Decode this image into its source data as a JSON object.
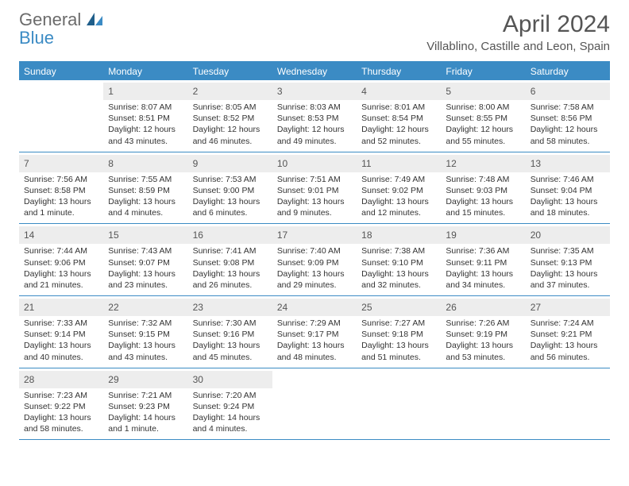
{
  "brand": {
    "part1": "General",
    "part2": "Blue"
  },
  "title": "April 2024",
  "location": "Villablino, Castille and Leon, Spain",
  "accent_color": "#3b8bc4",
  "daynum_bg": "#ededed",
  "text_color": "#555555",
  "body_text_color": "#333333",
  "dayNames": [
    "Sunday",
    "Monday",
    "Tuesday",
    "Wednesday",
    "Thursday",
    "Friday",
    "Saturday"
  ],
  "weeks": [
    [
      null,
      {
        "n": "1",
        "sr": "Sunrise: 8:07 AM",
        "ss": "Sunset: 8:51 PM",
        "dl": "Daylight: 12 hours and 43 minutes."
      },
      {
        "n": "2",
        "sr": "Sunrise: 8:05 AM",
        "ss": "Sunset: 8:52 PM",
        "dl": "Daylight: 12 hours and 46 minutes."
      },
      {
        "n": "3",
        "sr": "Sunrise: 8:03 AM",
        "ss": "Sunset: 8:53 PM",
        "dl": "Daylight: 12 hours and 49 minutes."
      },
      {
        "n": "4",
        "sr": "Sunrise: 8:01 AM",
        "ss": "Sunset: 8:54 PM",
        "dl": "Daylight: 12 hours and 52 minutes."
      },
      {
        "n": "5",
        "sr": "Sunrise: 8:00 AM",
        "ss": "Sunset: 8:55 PM",
        "dl": "Daylight: 12 hours and 55 minutes."
      },
      {
        "n": "6",
        "sr": "Sunrise: 7:58 AM",
        "ss": "Sunset: 8:56 PM",
        "dl": "Daylight: 12 hours and 58 minutes."
      }
    ],
    [
      {
        "n": "7",
        "sr": "Sunrise: 7:56 AM",
        "ss": "Sunset: 8:58 PM",
        "dl": "Daylight: 13 hours and 1 minute."
      },
      {
        "n": "8",
        "sr": "Sunrise: 7:55 AM",
        "ss": "Sunset: 8:59 PM",
        "dl": "Daylight: 13 hours and 4 minutes."
      },
      {
        "n": "9",
        "sr": "Sunrise: 7:53 AM",
        "ss": "Sunset: 9:00 PM",
        "dl": "Daylight: 13 hours and 6 minutes."
      },
      {
        "n": "10",
        "sr": "Sunrise: 7:51 AM",
        "ss": "Sunset: 9:01 PM",
        "dl": "Daylight: 13 hours and 9 minutes."
      },
      {
        "n": "11",
        "sr": "Sunrise: 7:49 AM",
        "ss": "Sunset: 9:02 PM",
        "dl": "Daylight: 13 hours and 12 minutes."
      },
      {
        "n": "12",
        "sr": "Sunrise: 7:48 AM",
        "ss": "Sunset: 9:03 PM",
        "dl": "Daylight: 13 hours and 15 minutes."
      },
      {
        "n": "13",
        "sr": "Sunrise: 7:46 AM",
        "ss": "Sunset: 9:04 PM",
        "dl": "Daylight: 13 hours and 18 minutes."
      }
    ],
    [
      {
        "n": "14",
        "sr": "Sunrise: 7:44 AM",
        "ss": "Sunset: 9:06 PM",
        "dl": "Daylight: 13 hours and 21 minutes."
      },
      {
        "n": "15",
        "sr": "Sunrise: 7:43 AM",
        "ss": "Sunset: 9:07 PM",
        "dl": "Daylight: 13 hours and 23 minutes."
      },
      {
        "n": "16",
        "sr": "Sunrise: 7:41 AM",
        "ss": "Sunset: 9:08 PM",
        "dl": "Daylight: 13 hours and 26 minutes."
      },
      {
        "n": "17",
        "sr": "Sunrise: 7:40 AM",
        "ss": "Sunset: 9:09 PM",
        "dl": "Daylight: 13 hours and 29 minutes."
      },
      {
        "n": "18",
        "sr": "Sunrise: 7:38 AM",
        "ss": "Sunset: 9:10 PM",
        "dl": "Daylight: 13 hours and 32 minutes."
      },
      {
        "n": "19",
        "sr": "Sunrise: 7:36 AM",
        "ss": "Sunset: 9:11 PM",
        "dl": "Daylight: 13 hours and 34 minutes."
      },
      {
        "n": "20",
        "sr": "Sunrise: 7:35 AM",
        "ss": "Sunset: 9:13 PM",
        "dl": "Daylight: 13 hours and 37 minutes."
      }
    ],
    [
      {
        "n": "21",
        "sr": "Sunrise: 7:33 AM",
        "ss": "Sunset: 9:14 PM",
        "dl": "Daylight: 13 hours and 40 minutes."
      },
      {
        "n": "22",
        "sr": "Sunrise: 7:32 AM",
        "ss": "Sunset: 9:15 PM",
        "dl": "Daylight: 13 hours and 43 minutes."
      },
      {
        "n": "23",
        "sr": "Sunrise: 7:30 AM",
        "ss": "Sunset: 9:16 PM",
        "dl": "Daylight: 13 hours and 45 minutes."
      },
      {
        "n": "24",
        "sr": "Sunrise: 7:29 AM",
        "ss": "Sunset: 9:17 PM",
        "dl": "Daylight: 13 hours and 48 minutes."
      },
      {
        "n": "25",
        "sr": "Sunrise: 7:27 AM",
        "ss": "Sunset: 9:18 PM",
        "dl": "Daylight: 13 hours and 51 minutes."
      },
      {
        "n": "26",
        "sr": "Sunrise: 7:26 AM",
        "ss": "Sunset: 9:19 PM",
        "dl": "Daylight: 13 hours and 53 minutes."
      },
      {
        "n": "27",
        "sr": "Sunrise: 7:24 AM",
        "ss": "Sunset: 9:21 PM",
        "dl": "Daylight: 13 hours and 56 minutes."
      }
    ],
    [
      {
        "n": "28",
        "sr": "Sunrise: 7:23 AM",
        "ss": "Sunset: 9:22 PM",
        "dl": "Daylight: 13 hours and 58 minutes."
      },
      {
        "n": "29",
        "sr": "Sunrise: 7:21 AM",
        "ss": "Sunset: 9:23 PM",
        "dl": "Daylight: 14 hours and 1 minute."
      },
      {
        "n": "30",
        "sr": "Sunrise: 7:20 AM",
        "ss": "Sunset: 9:24 PM",
        "dl": "Daylight: 14 hours and 4 minutes."
      },
      null,
      null,
      null,
      null
    ]
  ]
}
